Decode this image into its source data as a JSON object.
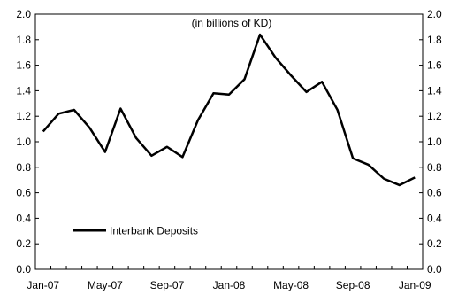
{
  "chart_data": {
    "type": "line",
    "annotation": "(in billions of KD)",
    "x": [
      "Jan-07",
      "Feb-07",
      "Mar-07",
      "Apr-07",
      "May-07",
      "Jun-07",
      "Jul-07",
      "Aug-07",
      "Sep-07",
      "Oct-07",
      "Nov-07",
      "Dec-07",
      "Jan-08",
      "Feb-08",
      "Mar-08",
      "Apr-08",
      "May-08",
      "Jun-08",
      "Jul-08",
      "Aug-08",
      "Sep-08",
      "Oct-08",
      "Nov-08",
      "Dec-08",
      "Jan-09"
    ],
    "x_tick_labels": [
      "Jan-07",
      "May-07",
      "Sep-07",
      "Jan-08",
      "May-08",
      "Sep-08",
      "Jan-09"
    ],
    "series": [
      {
        "name": "Interbank Deposits",
        "color": "#000000",
        "values": [
          1.08,
          1.22,
          1.25,
          1.11,
          0.92,
          1.26,
          1.03,
          0.89,
          0.96,
          0.88,
          1.17,
          1.38,
          1.37,
          1.49,
          1.84,
          1.66,
          1.52,
          1.39,
          1.47,
          1.25,
          0.87,
          0.82,
          0.71,
          0.66,
          0.72
        ]
      }
    ],
    "ylim": [
      0,
      2.0
    ],
    "y_ticks": [
      "0.0",
      "0.2",
      "0.4",
      "0.6",
      "0.8",
      "1.0",
      "1.2",
      "1.4",
      "1.6",
      "1.8",
      "2.0"
    ],
    "y_axes": "left and right",
    "grid": false,
    "legend_position": "lower-left"
  }
}
